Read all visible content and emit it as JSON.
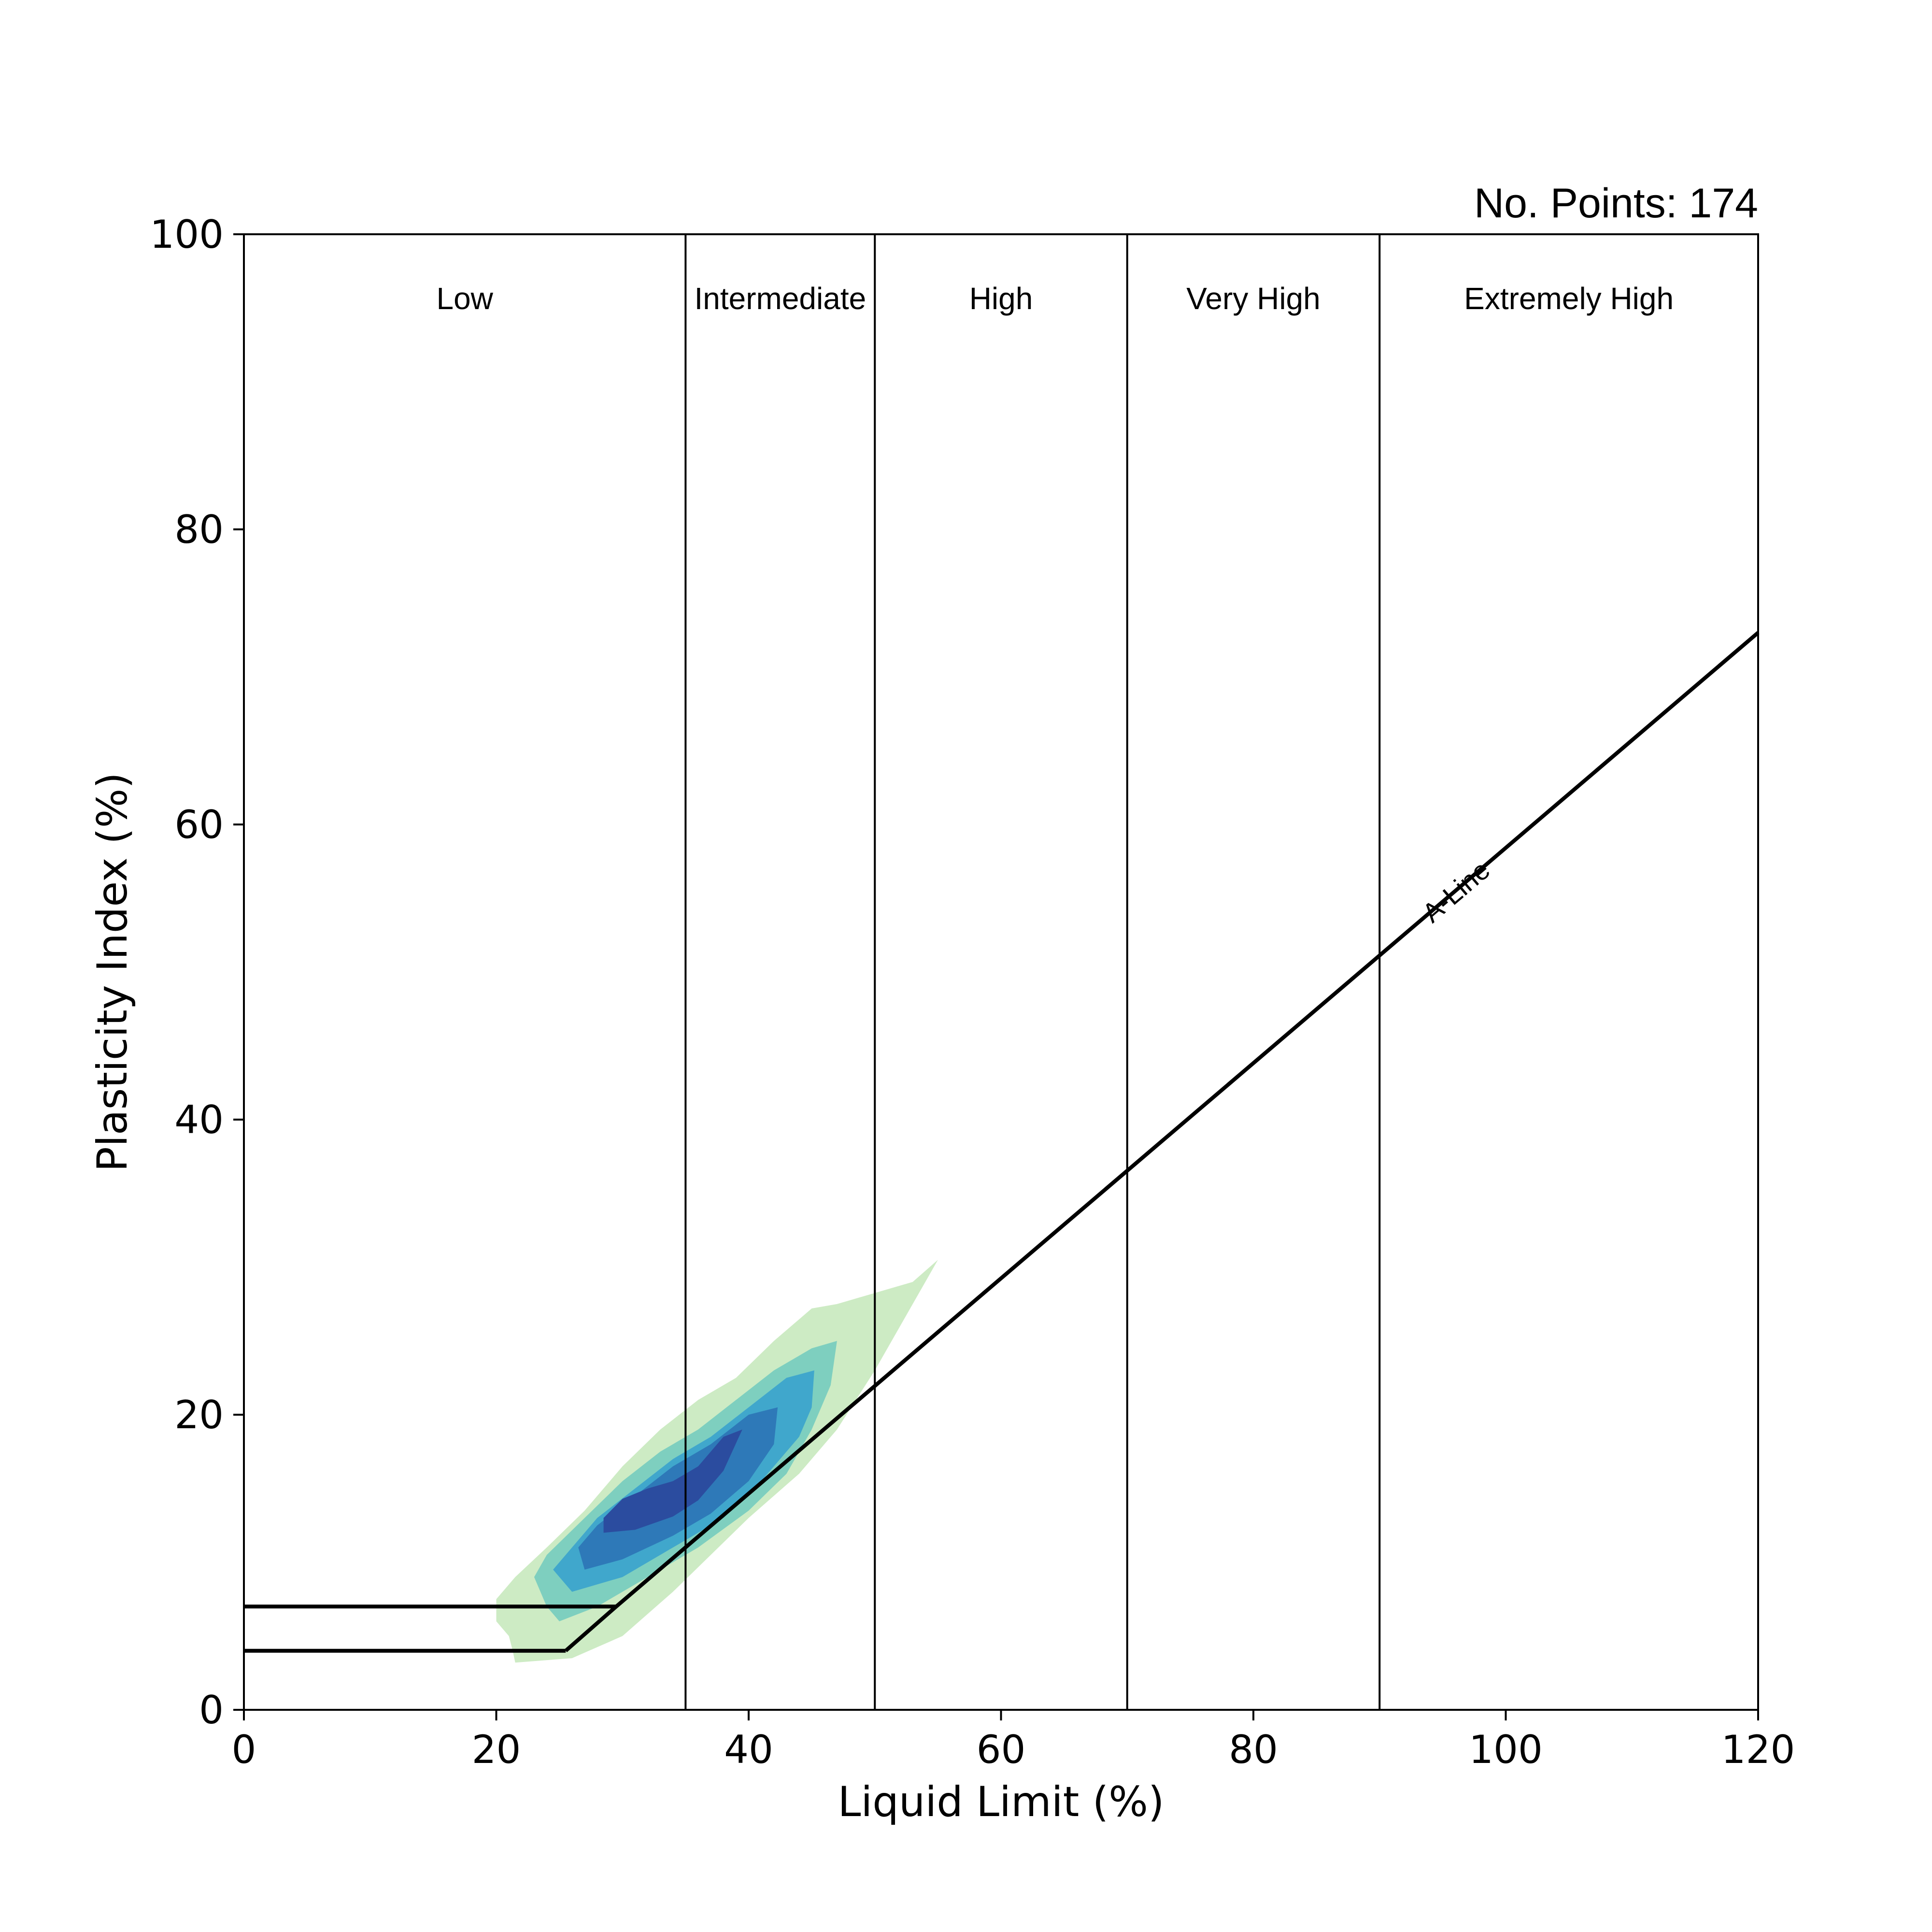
{
  "chart_data": {
    "type": "contour",
    "title": "",
    "annotation": "No. Points: 174",
    "xlabel": "Liquid Limit (%)",
    "ylabel": "Plasticity Index (%)",
    "xlim": [
      0,
      120
    ],
    "ylim": [
      0,
      100
    ],
    "xticks": [
      0,
      20,
      40,
      60,
      80,
      100,
      120
    ],
    "yticks": [
      0,
      20,
      40,
      60,
      80,
      100
    ],
    "plasticity_zones": [
      {
        "label": "Low",
        "from": 0,
        "to": 35
      },
      {
        "label": "Intermediate",
        "from": 35,
        "to": 50
      },
      {
        "label": "High",
        "from": 50,
        "to": 70
      },
      {
        "label": "Very High",
        "from": 70,
        "to": 90
      },
      {
        "label": "Extremely High",
        "from": 90,
        "to": 120
      }
    ],
    "zone_boundaries_x": [
      35,
      50,
      70,
      90
    ],
    "a_line": {
      "label": "A-Line",
      "points": [
        [
          25.5,
          4
        ],
        [
          29.5,
          7
        ],
        [
          120,
          73
        ]
      ]
    },
    "cl_ml_lines": [
      {
        "y": 7,
        "x_end": 29.5
      },
      {
        "y": 4,
        "x_end": 25.5
      }
    ],
    "density_levels": [
      {
        "color": "#cdebc4",
        "polygon": [
          [
            21.5,
            3.2
          ],
          [
            26,
            3.5
          ],
          [
            30,
            5
          ],
          [
            34,
            8
          ],
          [
            37,
            10.5
          ],
          [
            40,
            13
          ],
          [
            44,
            16
          ],
          [
            47,
            19
          ],
          [
            50,
            23
          ],
          [
            52,
            26
          ],
          [
            54,
            29
          ],
          [
            55,
            30.5
          ],
          [
            53,
            29
          ],
          [
            49,
            28
          ],
          [
            47,
            27.5
          ],
          [
            45,
            27.2
          ],
          [
            42,
            25
          ],
          [
            39,
            22.5
          ],
          [
            36,
            21
          ],
          [
            33,
            19
          ],
          [
            30,
            16.5
          ],
          [
            27,
            13.5
          ],
          [
            24,
            11
          ],
          [
            21.5,
            9
          ],
          [
            20,
            7.5
          ],
          [
            20,
            6
          ],
          [
            21,
            5
          ],
          [
            21.3,
            4
          ]
        ]
      },
      {
        "color": "#7ecfbf",
        "polygon": [
          [
            25,
            6
          ],
          [
            28,
            7
          ],
          [
            32,
            9
          ],
          [
            36,
            11
          ],
          [
            40,
            13.5
          ],
          [
            43,
            16
          ],
          [
            45,
            19
          ],
          [
            46.5,
            22
          ],
          [
            47,
            25
          ],
          [
            45,
            24.5
          ],
          [
            42,
            23
          ],
          [
            39,
            21
          ],
          [
            36,
            19
          ],
          [
            33,
            17.5
          ],
          [
            30,
            15.5
          ],
          [
            27,
            13
          ],
          [
            24,
            10.5
          ],
          [
            23,
            9
          ],
          [
            24,
            7
          ]
        ]
      },
      {
        "color": "#40a7cc",
        "polygon": [
          [
            26,
            8
          ],
          [
            30,
            9
          ],
          [
            34,
            11
          ],
          [
            38,
            13
          ],
          [
            41,
            15.5
          ],
          [
            44,
            18.5
          ],
          [
            45,
            20.5
          ],
          [
            45.2,
            23
          ],
          [
            43,
            22.5
          ],
          [
            40,
            20.5
          ],
          [
            37,
            18.5
          ],
          [
            34,
            17
          ],
          [
            31,
            15
          ],
          [
            28,
            13
          ],
          [
            26,
            11
          ],
          [
            24.5,
            9.5
          ]
        ]
      },
      {
        "color": "#2e79b8",
        "polygon": [
          [
            27,
            9.5
          ],
          [
            30,
            10.2
          ],
          [
            34,
            11.8
          ],
          [
            37,
            13.3
          ],
          [
            40,
            15.5
          ],
          [
            42,
            18
          ],
          [
            42.3,
            20.5
          ],
          [
            40,
            20
          ],
          [
            37,
            18
          ],
          [
            34,
            16.5
          ],
          [
            31,
            14.5
          ],
          [
            28,
            12.5
          ],
          [
            26.5,
            11
          ]
        ]
      },
      {
        "color": "#2b4c9f",
        "polygon": [
          [
            28.5,
            12
          ],
          [
            31,
            12.2
          ],
          [
            34,
            13.1
          ],
          [
            36,
            14.2
          ],
          [
            38,
            16.2
          ],
          [
            39.5,
            19
          ],
          [
            38,
            18.5
          ],
          [
            36,
            16.5
          ],
          [
            34,
            15.5
          ],
          [
            32,
            15
          ],
          [
            30,
            14.3
          ],
          [
            28.5,
            13
          ]
        ]
      }
    ]
  }
}
